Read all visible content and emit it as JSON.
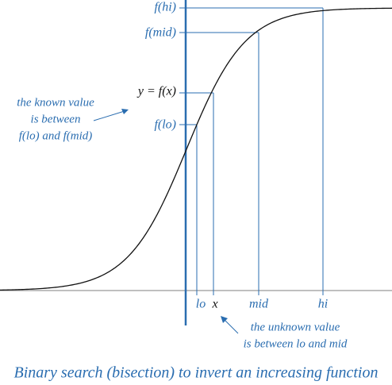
{
  "labels": {
    "f_hi": "f(hi)",
    "f_mid": "f(mid)",
    "y_eq": "y = f(x)",
    "f_lo": "f(lo)",
    "lo": "lo",
    "x": "x",
    "mid": "mid",
    "hi": "hi"
  },
  "known_note": [
    "the known value",
    "is between",
    "f(lo) and f(mid)"
  ],
  "unknown_note": [
    "the unknown value",
    "is between lo and mid"
  ],
  "caption": "Binary search (bisection) to invert an increasing function"
}
